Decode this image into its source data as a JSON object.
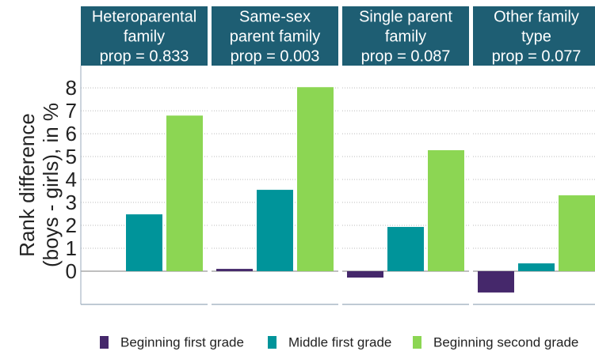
{
  "chart_data": {
    "type": "bar",
    "categories": [
      [
        "Heteroparental",
        "family",
        "prop = 0.833"
      ],
      [
        "Same-sex",
        "parent family",
        "prop = 0.003"
      ],
      [
        "Single parent",
        "family",
        "prop = 0.087"
      ],
      [
        "Other family",
        "type",
        "prop = 0.077"
      ]
    ],
    "ylabel": [
      "Rank difference",
      "(boys - girls), in %"
    ],
    "series": [
      {
        "name": "Beginning first grade",
        "color": "#45286b",
        "values": [
          0,
          0.1,
          -0.28,
          -0.93
        ]
      },
      {
        "name": "Middle first grade",
        "color": "#00949a",
        "values": [
          2.48,
          3.55,
          1.93,
          0.34
        ]
      },
      {
        "name": "Beginning second grade",
        "color": "#8cd653",
        "values": [
          6.79,
          8.03,
          5.28,
          3.31
        ]
      }
    ],
    "ylim": [
      -1.45,
      8.97
    ],
    "yticks": [
      0,
      1,
      2,
      3,
      4,
      5,
      6,
      7,
      8
    ],
    "grid": true,
    "legend": "bottom"
  }
}
